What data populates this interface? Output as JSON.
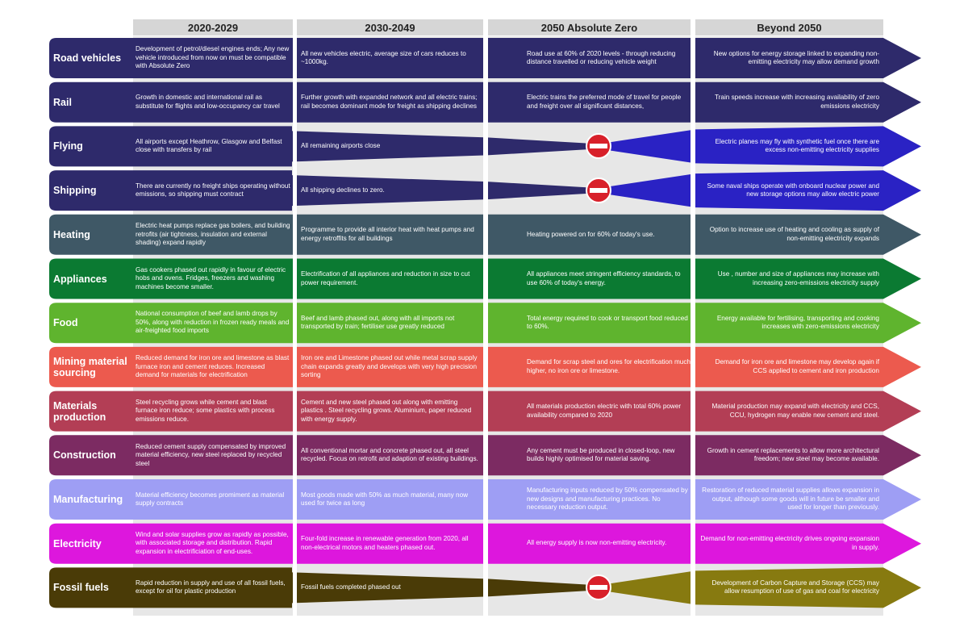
{
  "headers": [
    "2020-2029",
    "2030-2049",
    "2050 Absolute Zero",
    "Beyond 2050"
  ],
  "sectors": [
    {
      "label": "Road vehicles",
      "color": "#2e2a6b",
      "shape": "continue",
      "cells": [
        "Development of petrol/diesel engines ends; Any new vehicle introduced from now on must be compatible with Absolute Zero",
        "All new vehicles electric, average size of cars reduces to ~1000kg.",
        "Road use at 60% of 2020 levels - through reducing distance travelled or reducing vehicle weight",
        "New options for energy storage linked to expanding non-emitting electricity may allow demand growth"
      ]
    },
    {
      "label": "Rail",
      "color": "#2e2a6b",
      "shape": "continue",
      "cells": [
        "Growth in domestic and international rail as substitute for flights and low-occupancy car travel",
        "Further growth with expanded network and all electric trains; rail becomes dominant mode for freight as shipping declines",
        "Electric trains the preferred mode of travel for people and freight over all significant distances,",
        "Train speeds increase with increasing availability of zero emissions electricity"
      ]
    },
    {
      "label": "Flying",
      "color": "#2e2a6b",
      "beyond_color": "#2a22c4",
      "shape": "stop",
      "cells": [
        "All airports except Heathrow, Glasgow and Belfast close with transfers by rail",
        "All remaining airports close",
        "",
        "Electric planes may fly with synthetic fuel once there are excess non-emitting electricity supplies"
      ]
    },
    {
      "label": "Shipping",
      "color": "#2e2a6b",
      "beyond_color": "#2a22c4",
      "shape": "stop",
      "cells": [
        "There are currently no freight ships operating without emissions, so shipping must contract",
        "All shipping declines to zero.",
        "",
        "Some naval ships operate with onboard nuclear power and new storage options may allow electric power"
      ]
    },
    {
      "label": "Heating",
      "color": "#3f5866",
      "shape": "continue",
      "cells": [
        "Electric heat pumps replace gas boilers, and building retrofits (air tightness, insulation and external shading) expand rapidly",
        "Programme to provide all interior heat with heat pumps and energy retroffits for all buildings",
        "Heating powered on for 60% of today's use.",
        "Option to increase use of heating and cooling as supply of non-emitting electricity expands"
      ]
    },
    {
      "label": "Appliances",
      "color": "#0b7a32",
      "shape": "continue",
      "cells": [
        "Gas cookers phased out rapidly in favour of electric hobs and ovens. Fridges, freezers and washing machines become smaller.",
        "Electrification of all appliances and reduction in size to cut power requirement.",
        "All appliances meet stringent efficiency standards, to use 60% of today's energy.",
        "Use , number and size of appliances may increase with increasing zero-emissions electricity supply"
      ]
    },
    {
      "label": "Food",
      "color": "#5fb42e",
      "shape": "continue",
      "cells": [
        "National consumption of beef and lamb drops by 50%, along with reduction in frozen ready meals and air-freighted food imports",
        "Beef and lamb phased out, along with all imports not transported by train; fertiliser use greatly reduced",
        "Total energy required to cook or transport food reduced to 60%.",
        "Energy available for fertilising, transporting and cooking increases with zero-emissions electricity"
      ]
    },
    {
      "label": "Mining material sourcing",
      "color": "#ec5a4e",
      "shape": "continue",
      "cells": [
        "Reduced demand for iron ore and limestone as blast furnace iron and cement reduces. Increased demand for materials for electrification",
        "Iron ore and Limestone phased out while metal scrap supply chain expands greatly and develops with very high precision sorting",
        "Demand for scrap steel and ores for electrification much higher, no iron ore or limestone.",
        "Demand for iron ore and limestone may develop again if CCS applied to cement and iron production"
      ]
    },
    {
      "label": "Materials production",
      "color": "#b33e55",
      "shape": "continue",
      "cells": [
        "Steel recycling grows while cement and blast furnace iron reduce; some plastics with process emissions reduce.",
        "Cement and new steel phased out along with emitting plastics . Steel recycling grows. Aluminium, paper reduced with energy supply.",
        "All materials production electric with total 60% power availability compared to 2020",
        "Material production may expand with electricity and CCS, CCU, hydrogen may enable new cement and steel."
      ]
    },
    {
      "label": "Construction",
      "color": "#7c2b62",
      "shape": "continue",
      "cells": [
        "Reduced cement supply compensated by improved material efficiency, new steel replaced by recycled steel",
        "All conventional mortar and concrete phased out, all steel recycled. Focus on retrofit and adaption of existing buildings.",
        "Any cement must be produced in closed-loop, new builds highly optimised for material saving.",
        "Growth in cement replacements to allow more architectural freedom; new steel may become available."
      ]
    },
    {
      "label": "Manufacturing",
      "color": "#9e9ef4",
      "shape": "continue",
      "cells": [
        "Material efficiency becomes promiment as material supply contracts",
        "Most goods made with 50% as much material, many now used for twice as long",
        "Manufacturing inputs reduced by 50% compensated by new designs and manufacturing practices. No necessary reduction output.",
        "Restoration of reduced material supplies allows expansion in output, although some goods will in future be smaller and used for longer than previously."
      ]
    },
    {
      "label": "Electricity",
      "color": "#dd17dd",
      "shape": "continue",
      "cells": [
        "Wind and solar supplies grow as rapidly as possible, with associated storage and distribution. Rapid expansion in electrificiation of end-uses.",
        "Four-fold increase in renewable generation from 2020, all non-electrical motors and heaters phased out.",
        "All energy supply is now non-emitting electricity.",
        "Demand for non-emitting electricity drives ongoing expansion in supply."
      ]
    },
    {
      "label": "Fossil fuels",
      "color": "#4a3b07",
      "beyond_color": "#877a10",
      "shape": "stop",
      "cells": [
        "Rapid reduction in supply and use of all fossil fuels, except for oil for plastic production",
        "Fossil fuels completed phased out",
        "",
        "Development of Carbon Capture and Storage (CCS) may allow resumption of use of gas and coal for electricity"
      ]
    }
  ]
}
